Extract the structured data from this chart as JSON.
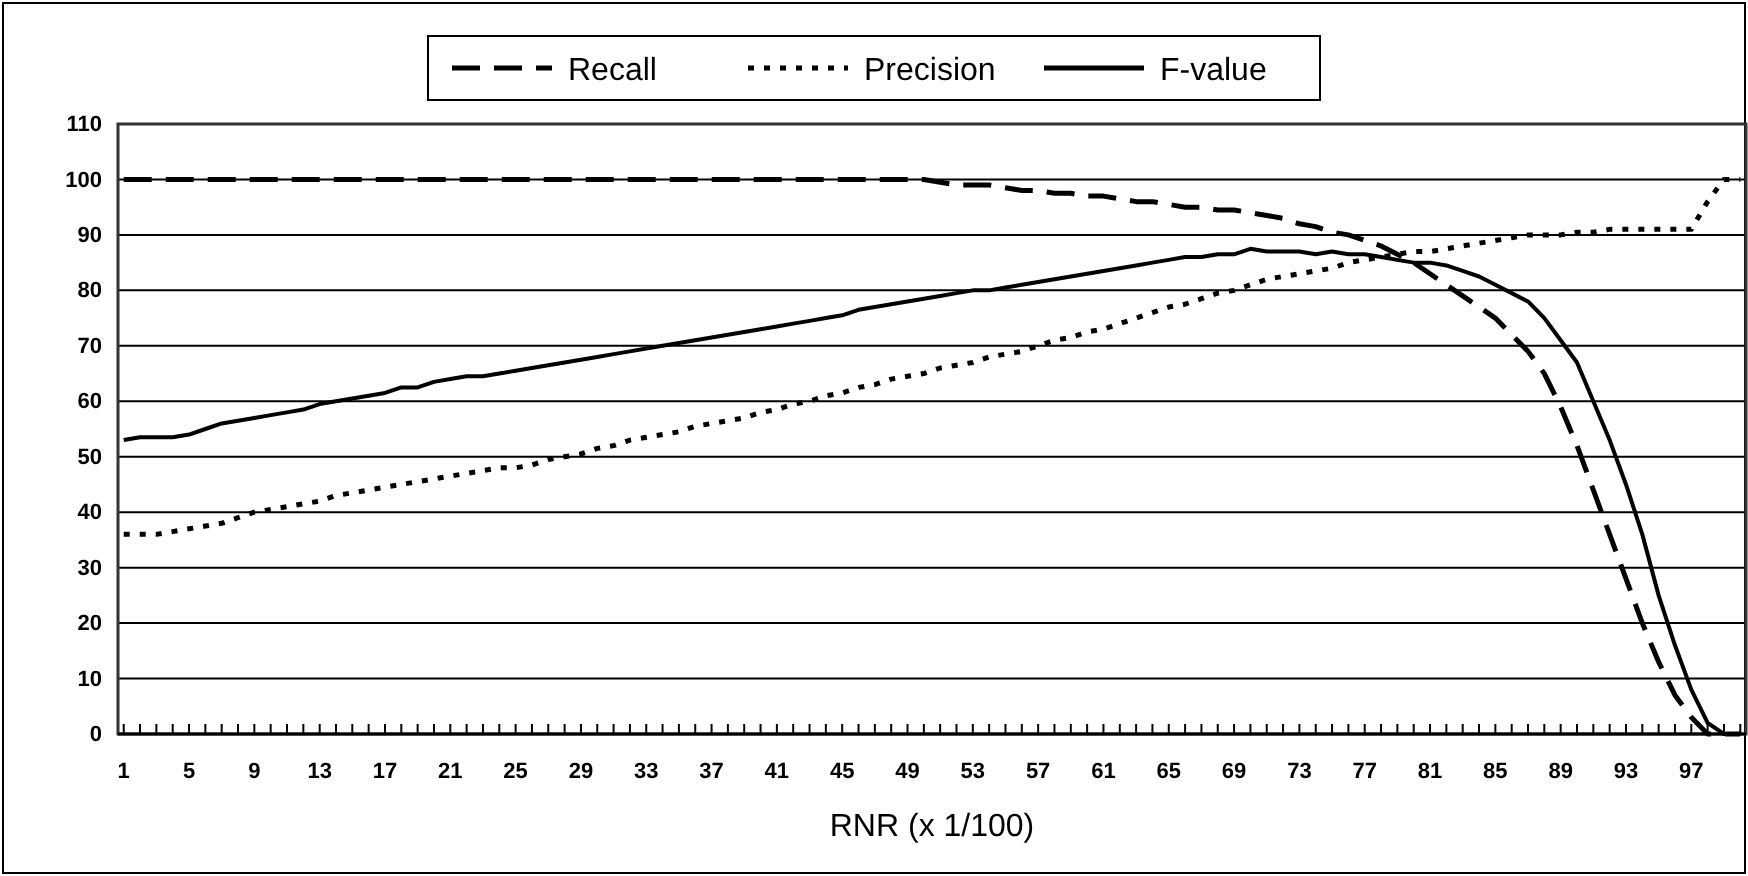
{
  "chart_data": {
    "type": "line",
    "xlabel": "RNR (x 1/100)",
    "legend": "top",
    "grid": "y",
    "marker": "none",
    "categories": [
      "1",
      null,
      null,
      null,
      "5",
      null,
      null,
      null,
      "9",
      null,
      null,
      null,
      "13",
      null,
      null,
      null,
      "17",
      null,
      null,
      null,
      "21",
      null,
      null,
      null,
      "25",
      null,
      null,
      null,
      "29",
      null,
      null,
      null,
      "33",
      null,
      null,
      null,
      "37",
      null,
      null,
      null,
      "41",
      null,
      null,
      null,
      "45",
      null,
      null,
      null,
      "49",
      null,
      null,
      null,
      "53",
      null,
      null,
      null,
      "57",
      null,
      null,
      null,
      "61",
      null,
      null,
      null,
      "65",
      null,
      null,
      null,
      "69",
      null,
      null,
      null,
      "73",
      null,
      null,
      null,
      "77",
      null,
      null,
      null,
      "81",
      null,
      null,
      null,
      "85",
      null,
      null,
      null,
      "89",
      null,
      null,
      null,
      "93",
      null,
      null,
      null,
      "97",
      null,
      null,
      null
    ],
    "ylim": [
      0,
      110
    ],
    "yticks": [
      0,
      10,
      20,
      30,
      40,
      50,
      60,
      70,
      80,
      90,
      100,
      110
    ],
    "series": [
      {
        "name": "Recall",
        "color": "#000000",
        "line_style": "dashed",
        "values": [
          100,
          100,
          100,
          100,
          100,
          100,
          100,
          100,
          100,
          100,
          100,
          100,
          100,
          100,
          100,
          100,
          100,
          100,
          100,
          100,
          100,
          100,
          100,
          100,
          100,
          100,
          100,
          100,
          100,
          100,
          100,
          100,
          100,
          100,
          100,
          100,
          100,
          100,
          100,
          100,
          100,
          100,
          100,
          100,
          100,
          100,
          100,
          100,
          100,
          100,
          99.5,
          99,
          99,
          99,
          98.5,
          98,
          98,
          97.5,
          97.5,
          97,
          97,
          96.5,
          96,
          96,
          95.5,
          95,
          95,
          94.5,
          94.5,
          94,
          93.5,
          93,
          92,
          91.5,
          90.5,
          90,
          89,
          88,
          86.5,
          85,
          83,
          81,
          79,
          77,
          75,
          72,
          69,
          65,
          59,
          52,
          44,
          36,
          28,
          20,
          13,
          7,
          3,
          0,
          0,
          0
        ]
      },
      {
        "name": "Precision",
        "color": "#000000",
        "line_style": "dotted",
        "values": [
          36,
          36,
          36,
          36.5,
          37,
          37.5,
          38,
          39,
          40,
          40.5,
          41,
          41.5,
          42,
          43,
          43.5,
          44,
          44.5,
          45,
          45.5,
          46,
          46.5,
          47,
          47.5,
          48,
          48,
          48.5,
          49.5,
          50,
          50.5,
          51.5,
          52,
          53,
          53.5,
          54,
          54.5,
          55.5,
          56,
          56.5,
          57,
          58,
          58.5,
          59.5,
          60,
          61,
          61.5,
          62.5,
          63,
          64,
          64.5,
          65,
          66,
          66.5,
          67,
          68,
          68.5,
          69,
          70,
          71,
          71.5,
          72.5,
          73,
          74,
          75,
          76,
          77,
          77.5,
          78.5,
          79.5,
          80,
          81,
          82,
          82.5,
          83,
          83.5,
          84,
          85,
          85.5,
          86,
          86.5,
          87,
          87,
          87.5,
          88,
          88.5,
          89,
          89.5,
          90,
          90,
          90,
          90.5,
          90.5,
          91,
          91,
          91,
          91,
          91,
          91,
          96,
          100,
          100
        ]
      },
      {
        "name": "F-value",
        "color": "#000000",
        "line_style": "solid",
        "values": [
          53,
          53.5,
          53.5,
          53.5,
          54,
          55,
          56,
          56.5,
          57,
          57.5,
          58,
          58.5,
          59.5,
          60,
          60.5,
          61,
          61.5,
          62.5,
          62.5,
          63.5,
          64,
          64.5,
          64.5,
          65,
          65.5,
          66,
          66.5,
          67,
          67.5,
          68,
          68.5,
          69,
          69.5,
          70,
          70.5,
          71,
          71.5,
          72,
          72.5,
          73,
          73.5,
          74,
          74.5,
          75,
          75.5,
          76.5,
          77,
          77.5,
          78,
          78.5,
          79,
          79.5,
          80,
          80,
          80.5,
          81,
          81.5,
          82,
          82.5,
          83,
          83.5,
          84,
          84.5,
          85,
          85.5,
          86,
          86,
          86.5,
          86.5,
          87.5,
          87,
          87,
          87,
          86.5,
          87,
          86.5,
          86.5,
          86,
          85.5,
          85,
          85,
          84.5,
          83.5,
          82.5,
          81,
          79.5,
          78,
          75,
          71,
          67,
          60,
          53,
          45,
          36,
          25,
          16,
          8,
          2,
          0,
          0
        ]
      }
    ]
  }
}
